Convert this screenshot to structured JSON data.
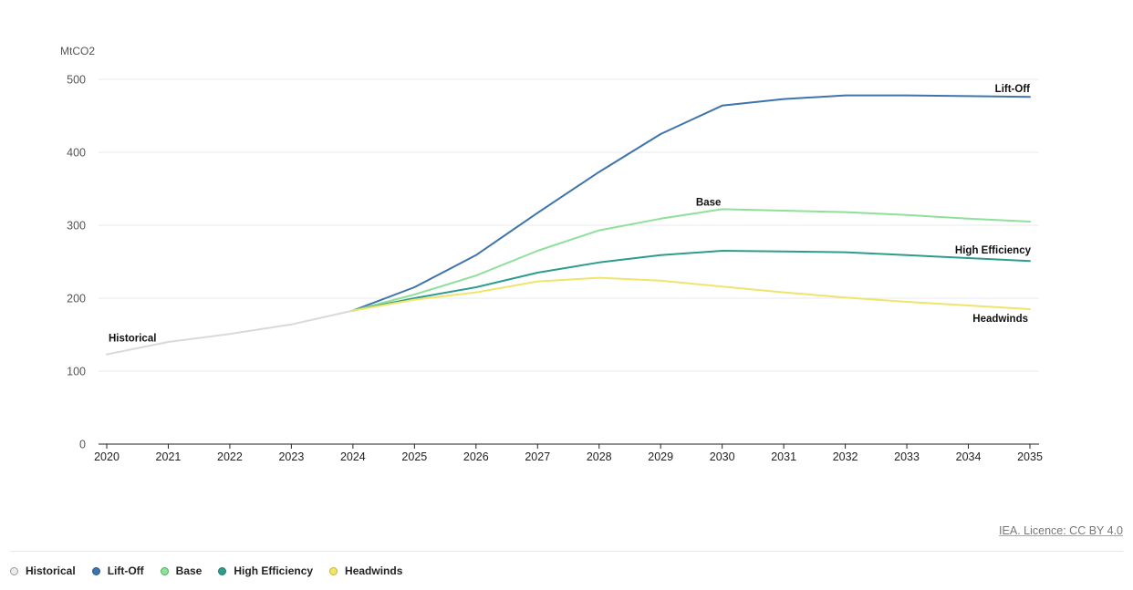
{
  "chart_data": {
    "type": "line",
    "ylabel": "MtCO2",
    "ylim": [
      0,
      500
    ],
    "yticks": [
      "0",
      "100",
      "200",
      "300",
      "400",
      "500"
    ],
    "x": [
      "2020",
      "2021",
      "2022",
      "2023",
      "2024",
      "2025",
      "2026",
      "2027",
      "2028",
      "2029",
      "2030",
      "2031",
      "2032",
      "2033",
      "2034",
      "2035"
    ],
    "grid": true,
    "legend_position": "bottom-left",
    "series": [
      {
        "name": "Historical",
        "color": "#d9d9d9",
        "swatch_border": "#9a9a9a",
        "x": [
          "2020",
          "2021",
          "2022",
          "2023",
          "2024"
        ],
        "values": [
          123,
          140,
          151,
          164,
          183
        ]
      },
      {
        "name": "Lift-Off",
        "color": "#3e74ab",
        "swatch_border": "#2a5a8f",
        "x": [
          "2024",
          "2025",
          "2026",
          "2027",
          "2028",
          "2029",
          "2030",
          "2031",
          "2032",
          "2033",
          "2034",
          "2035"
        ],
        "values": [
          183,
          215,
          259,
          317,
          373,
          425,
          464,
          473,
          478,
          478,
          477,
          476
        ]
      },
      {
        "name": "Base",
        "color": "#8fe09a",
        "swatch_border": "#4caf5c",
        "x": [
          "2024",
          "2025",
          "2026",
          "2027",
          "2028",
          "2029",
          "2030",
          "2031",
          "2032",
          "2033",
          "2034",
          "2035"
        ],
        "values": [
          183,
          205,
          231,
          265,
          293,
          309,
          322,
          320,
          318,
          314,
          309,
          305
        ]
      },
      {
        "name": "High Efficiency",
        "color": "#2e9c8c",
        "swatch_border": "#1e7a6c",
        "x": [
          "2024",
          "2025",
          "2026",
          "2027",
          "2028",
          "2029",
          "2030",
          "2031",
          "2032",
          "2033",
          "2034",
          "2035"
        ],
        "values": [
          183,
          200,
          215,
          235,
          249,
          259,
          265,
          264,
          263,
          259,
          255,
          251
        ]
      },
      {
        "name": "Headwinds",
        "color": "#f1e36b",
        "swatch_border": "#c8b62a",
        "x": [
          "2024",
          "2025",
          "2026",
          "2027",
          "2028",
          "2029",
          "2030",
          "2031",
          "2032",
          "2033",
          "2034",
          "2035"
        ],
        "values": [
          183,
          198,
          208,
          223,
          228,
          224,
          216,
          208,
          201,
          195,
          190,
          185
        ]
      }
    ],
    "annotations": [
      {
        "text": "Historical",
        "series": "Historical",
        "anchor_x": "2020"
      },
      {
        "text": "Lift-Off",
        "series": "Lift-Off",
        "anchor_x": "2035"
      },
      {
        "text": "Base",
        "series": "Base",
        "anchor_x": "2030"
      },
      {
        "text": "High Efficiency",
        "series": "High Efficiency",
        "anchor_x": "2035"
      },
      {
        "text": "Headwinds",
        "series": "Headwinds",
        "anchor_x": "2035"
      }
    ]
  },
  "credit": "IEA. Licence: CC BY 4.0",
  "legend": [
    {
      "label": "Historical",
      "fill": "#ececec",
      "border": "#9a9a9a"
    },
    {
      "label": "Lift-Off",
      "fill": "#3e74ab",
      "border": "#2a5a8f"
    },
    {
      "label": "Base",
      "fill": "#8fe09a",
      "border": "#4caf5c"
    },
    {
      "label": "High Efficiency",
      "fill": "#2e9c8c",
      "border": "#1e7a6c"
    },
    {
      "label": "Headwinds",
      "fill": "#f1e36b",
      "border": "#c8b62a"
    }
  ]
}
